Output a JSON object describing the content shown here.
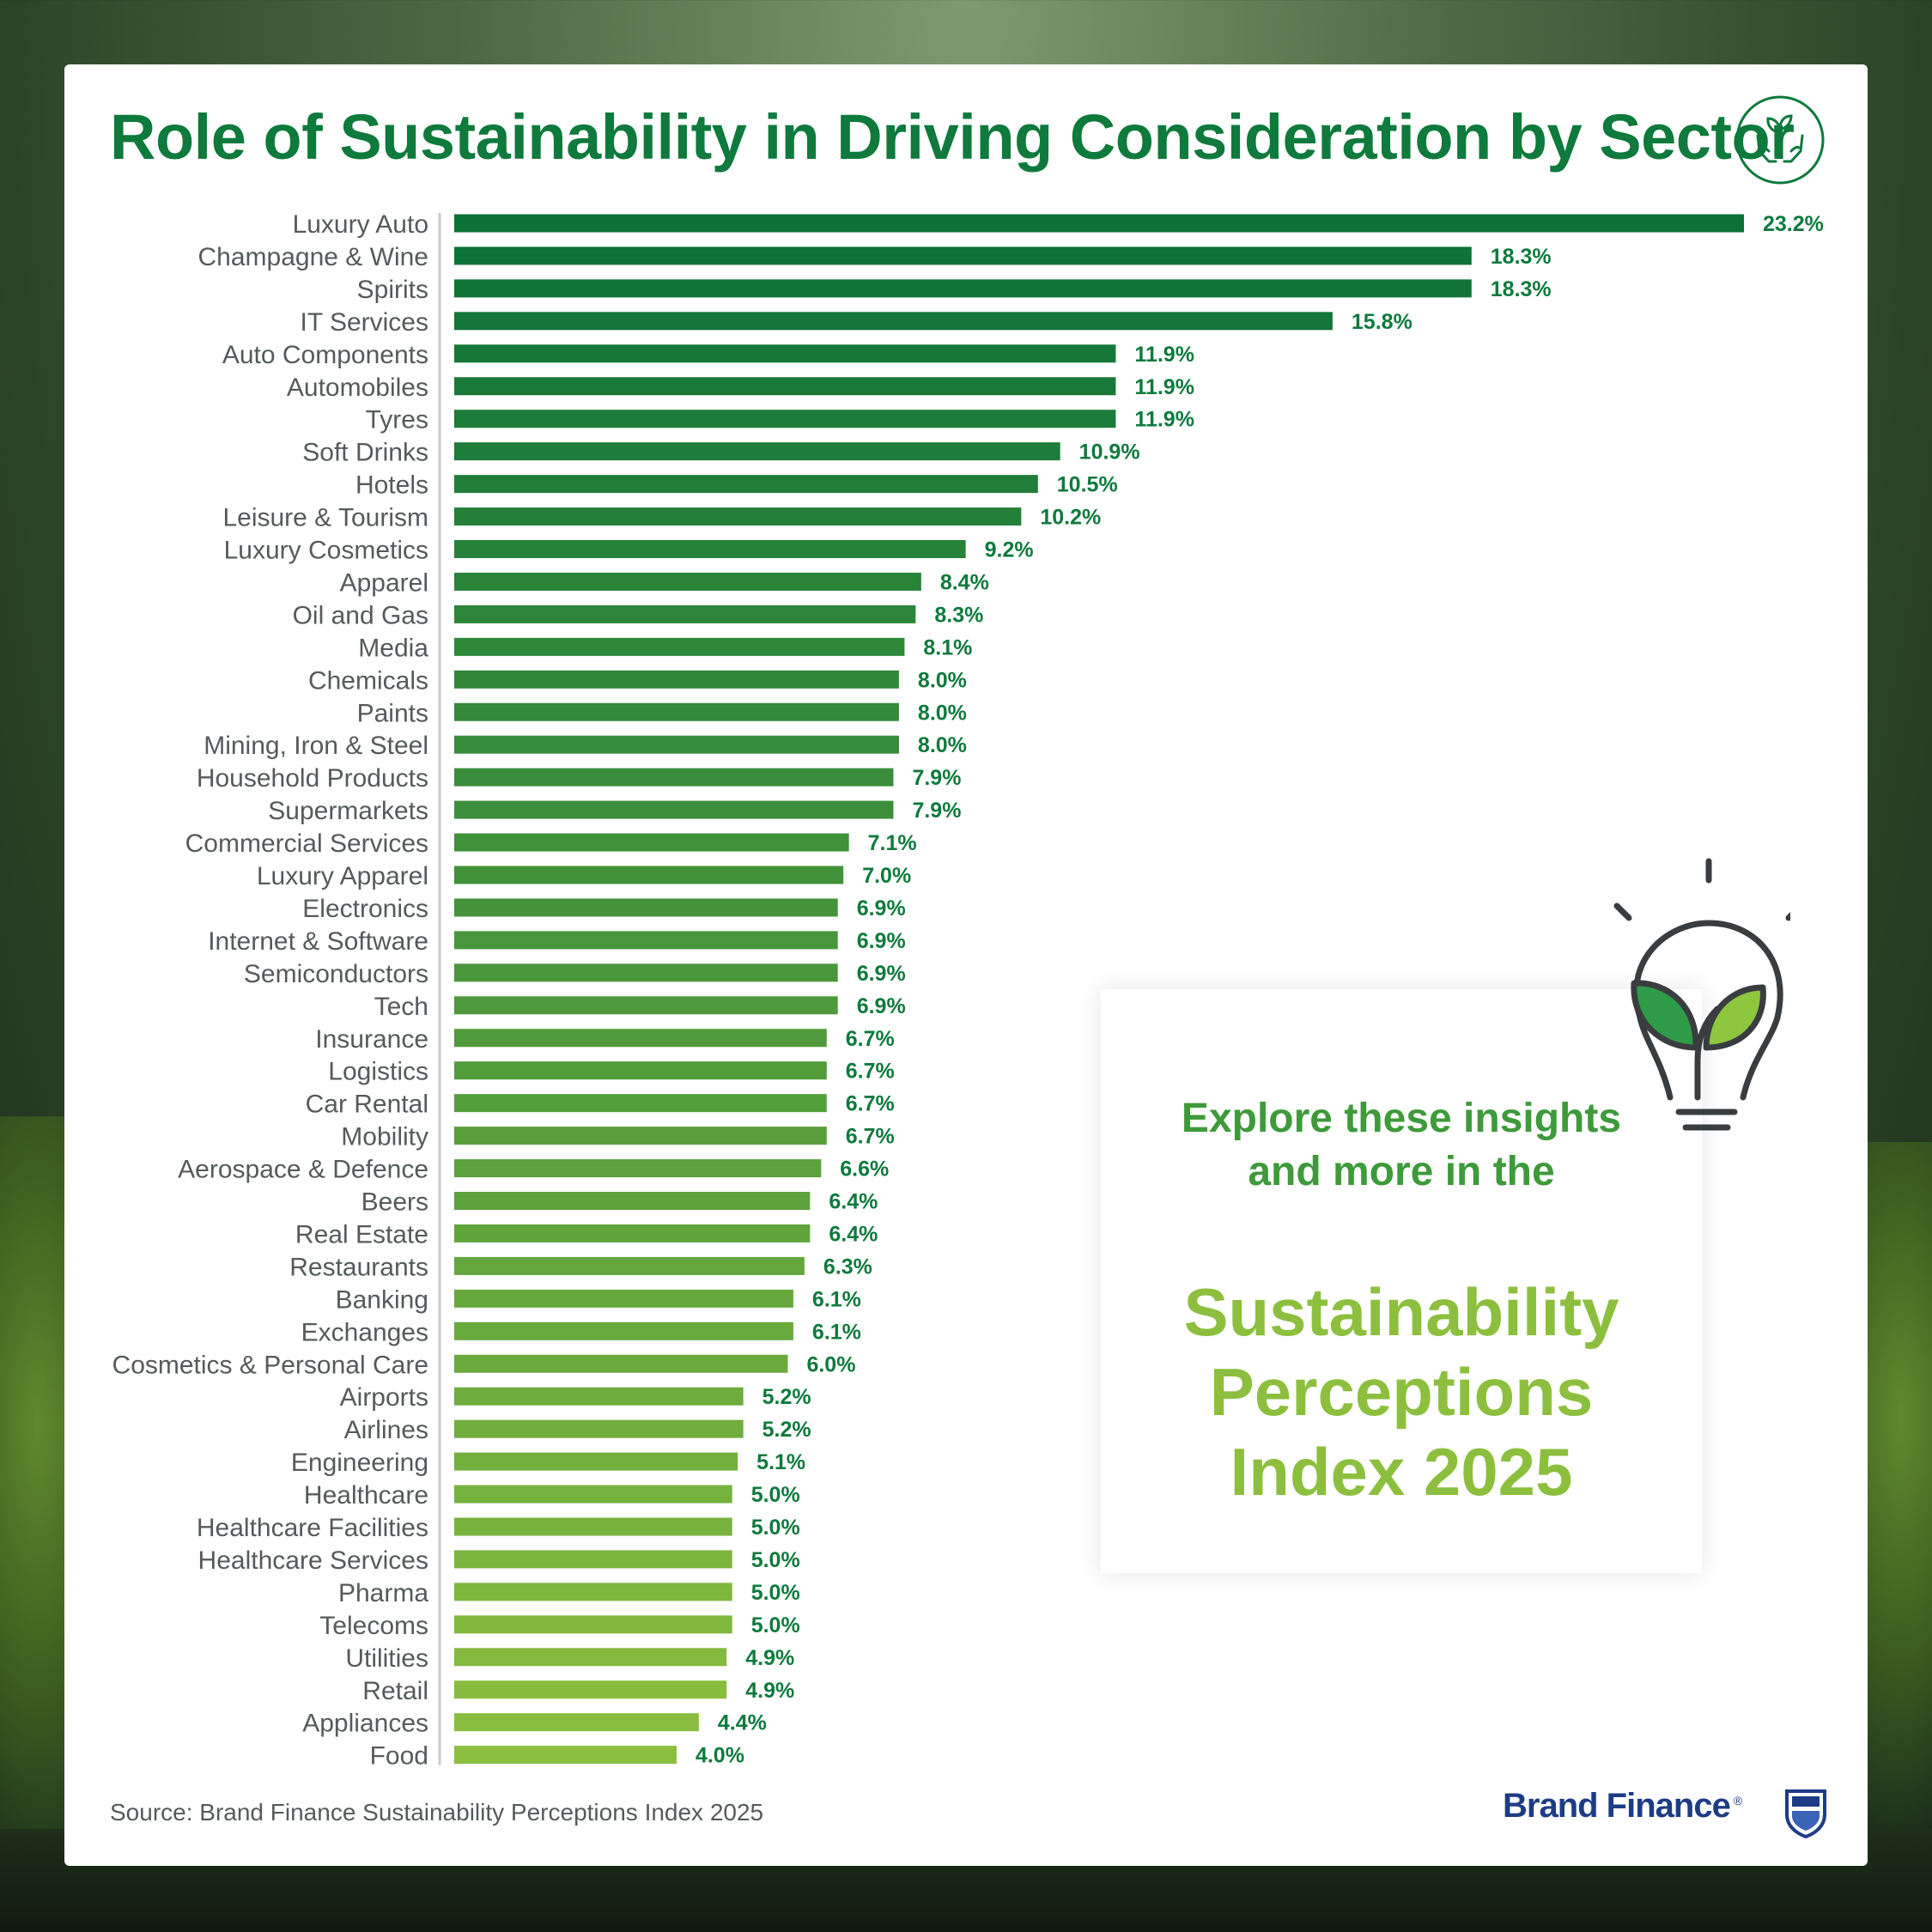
{
  "title": "Role of Sustainability in Driving Consideration by Sector",
  "icons": {
    "header": "hands-with-sprout-icon",
    "promo": "lightbulb-with-leaves-icon",
    "brand": "shield-crest-icon"
  },
  "chart_data": {
    "type": "bar",
    "orientation": "horizontal",
    "title": "Role of Sustainability in Driving Consideration by Sector",
    "xlabel": "",
    "ylabel": "",
    "value_suffix": "%",
    "xlim": [
      0,
      23.2
    ],
    "grid": false,
    "colors": {
      "start": "#0b7137",
      "end": "#8cbf3f",
      "value_label": "#0e7a3c"
    },
    "categories": [
      "Luxury Auto",
      "Champagne & Wine",
      "Spirits",
      "IT Services",
      "Auto Components",
      "Automobiles",
      "Tyres",
      "Soft Drinks",
      "Hotels",
      "Leisure & Tourism",
      "Luxury Cosmetics",
      "Apparel",
      "Oil and Gas",
      "Media",
      "Chemicals",
      "Paints",
      "Mining, Iron & Steel",
      "Household Products",
      "Supermarkets",
      "Commercial Services",
      "Luxury Apparel",
      "Electronics",
      "Internet & Software",
      "Semiconductors",
      "Tech",
      "Insurance",
      "Logistics",
      "Car Rental",
      "Mobility",
      "Aerospace & Defence",
      "Beers",
      "Real Estate",
      "Restaurants",
      "Banking",
      "Exchanges",
      "Cosmetics & Personal Care",
      "Airports",
      "Airlines",
      "Engineering",
      "Healthcare",
      "Healthcare Facilities",
      "Healthcare Services",
      "Pharma",
      "Telecoms",
      "Utilities",
      "Retail",
      "Appliances",
      "Food"
    ],
    "values": [
      23.2,
      18.3,
      18.3,
      15.8,
      11.9,
      11.9,
      11.9,
      10.9,
      10.5,
      10.2,
      9.2,
      8.4,
      8.3,
      8.1,
      8.0,
      8.0,
      8.0,
      7.9,
      7.9,
      7.1,
      7.0,
      6.9,
      6.9,
      6.9,
      6.9,
      6.7,
      6.7,
      6.7,
      6.7,
      6.6,
      6.4,
      6.4,
      6.3,
      6.1,
      6.1,
      6.0,
      5.2,
      5.2,
      5.1,
      5.0,
      5.0,
      5.0,
      5.0,
      5.0,
      4.9,
      4.9,
      4.4,
      4.0
    ]
  },
  "promo": {
    "intro_line1": "Explore these insights",
    "intro_line2": "and more in the",
    "title_line1": "Sustainability",
    "title_line2": "Perceptions",
    "title_line3": "Index 2025"
  },
  "footer": {
    "source": "Source: Brand Finance Sustainability Perceptions Index 2025",
    "brand": "Brand Finance",
    "registered_mark": "®"
  }
}
